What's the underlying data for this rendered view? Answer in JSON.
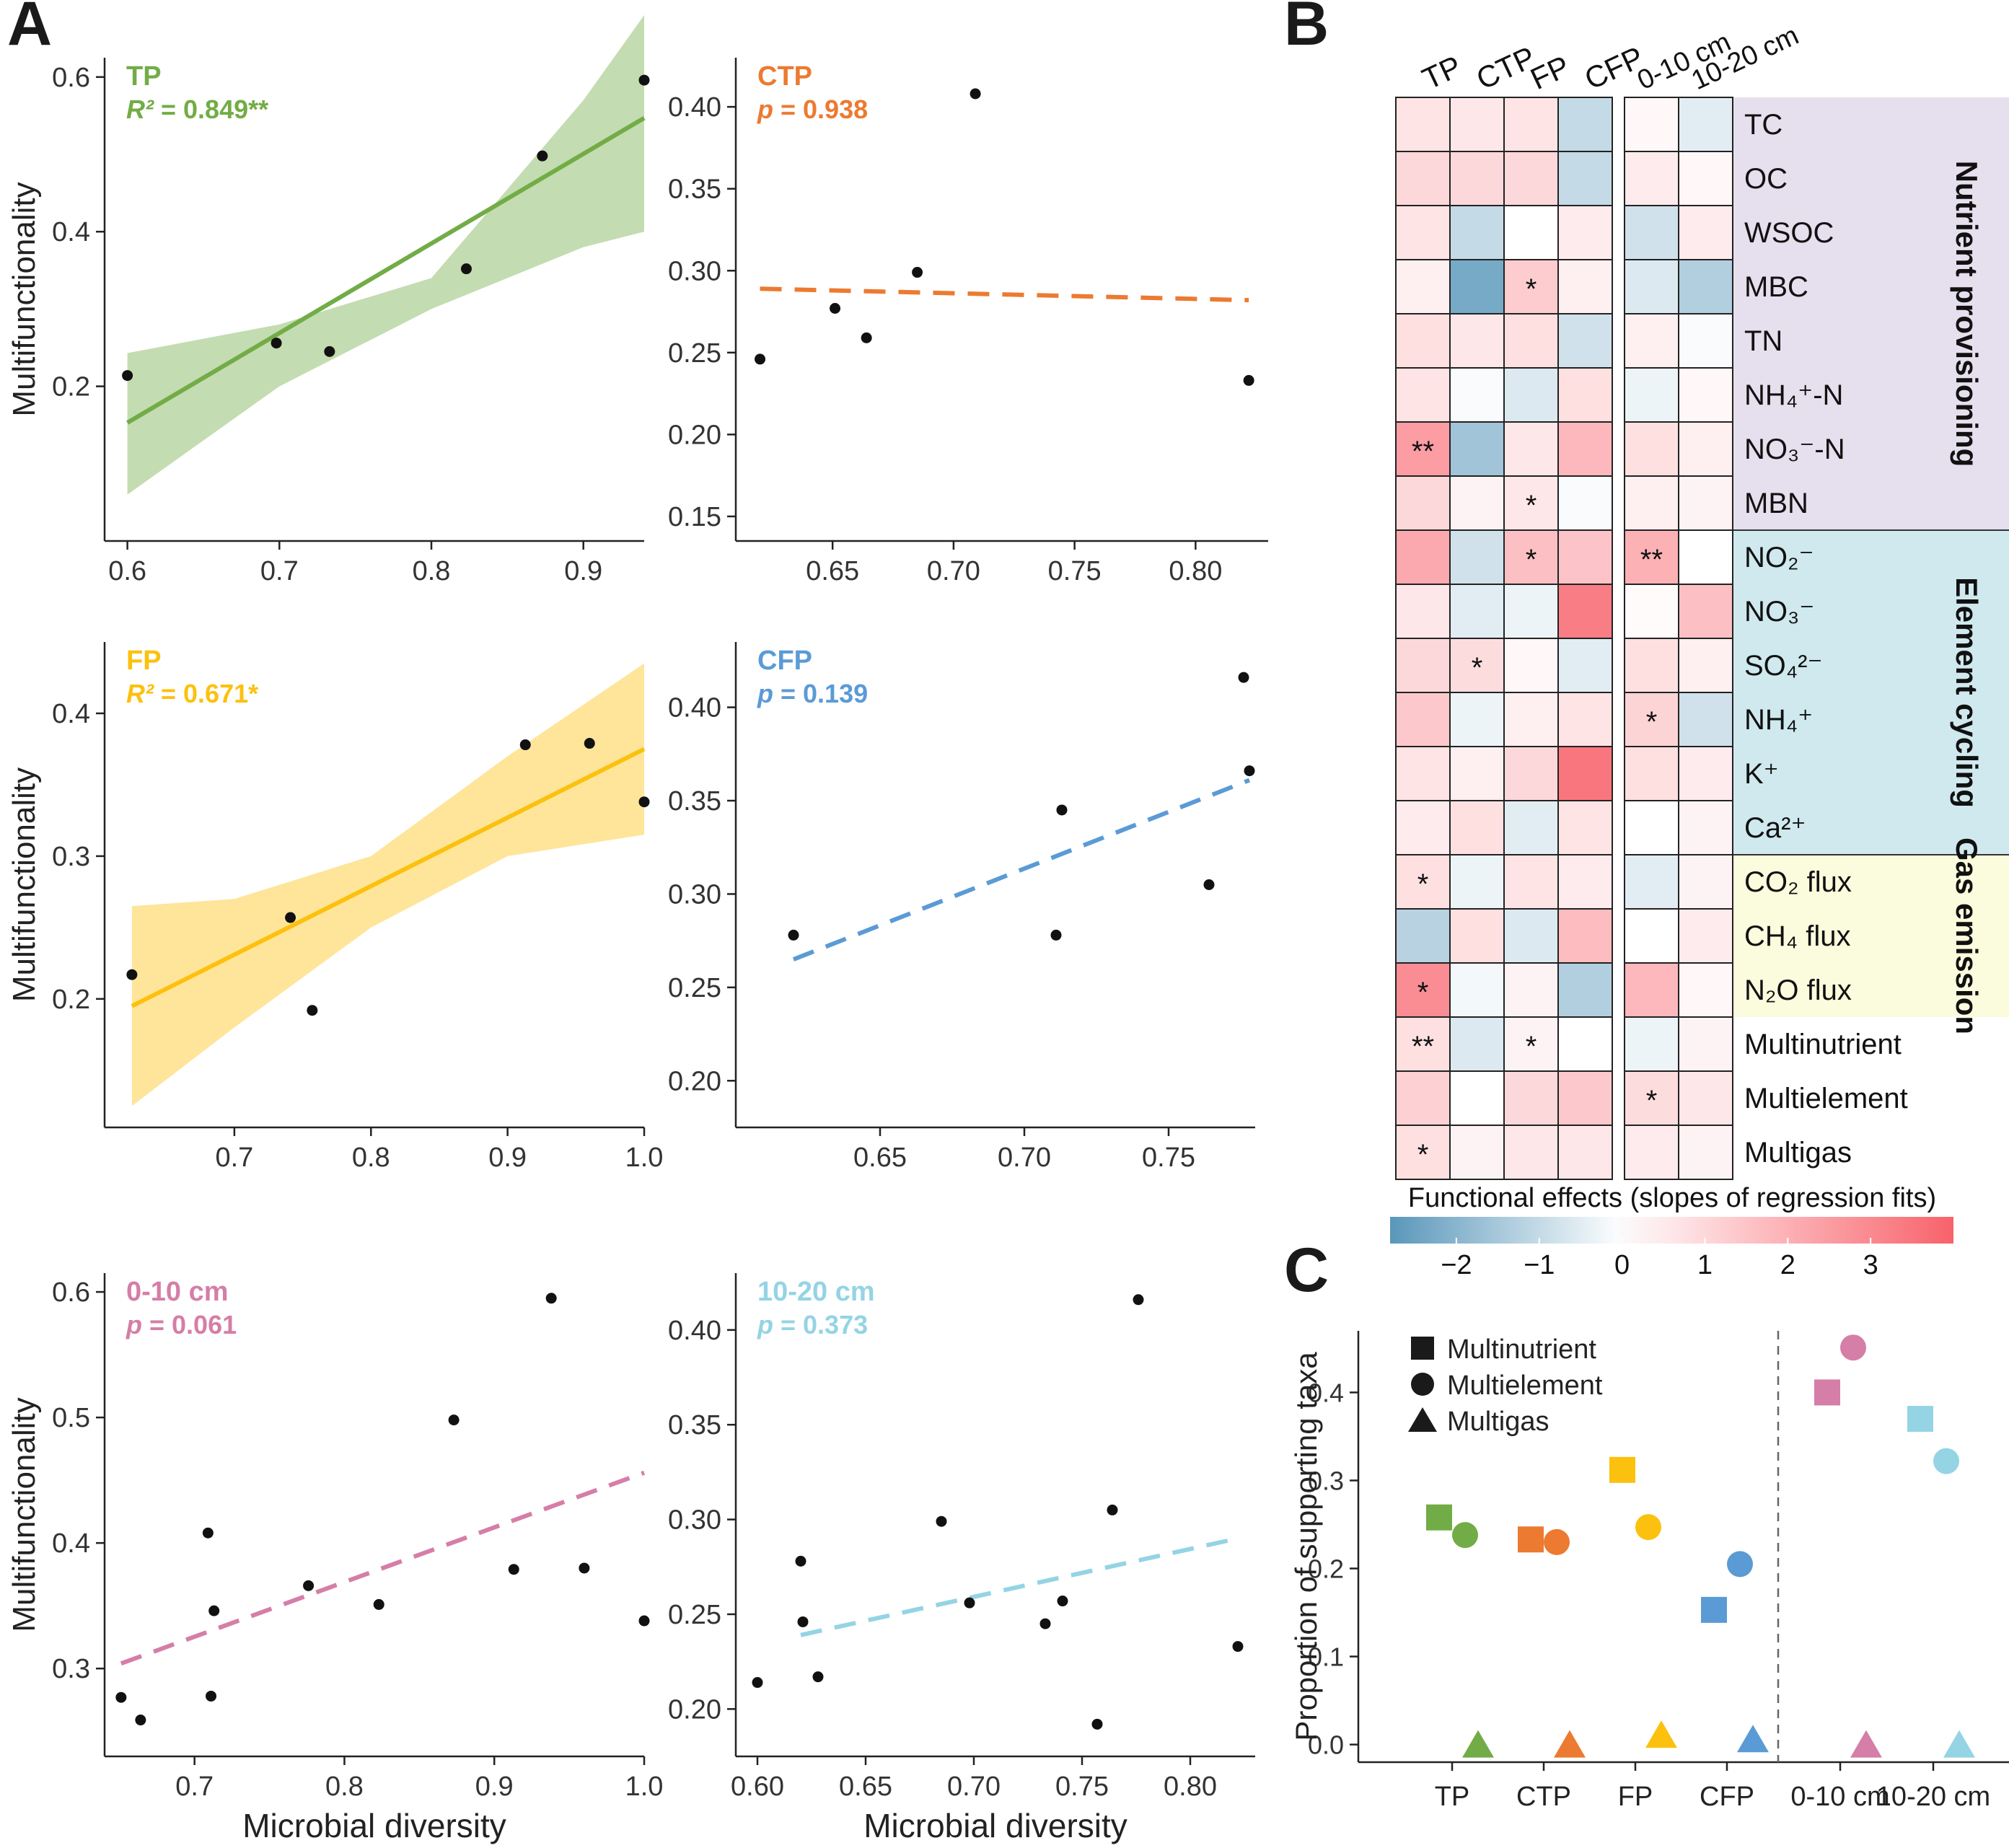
{
  "figure": {
    "panel_labels": {
      "A": "A",
      "B": "B",
      "C": "C"
    },
    "colors": {
      "tp": "#72ac46",
      "ctp": "#ec7a31",
      "fp": "#fcc10e",
      "cfp": "#5b9bd5",
      "d010": "#d57ea7",
      "d1020": "#94d4e4",
      "purple_band": "#e6dfee",
      "blue_band": "#cfe9ee",
      "yellow_band": "#fbfbdd",
      "neg": "#5a97ba",
      "pos": "#f8626b"
    }
  },
  "chart_data": [
    {
      "type": "scatter",
      "panel": "A1",
      "label": "TP",
      "stat": "R² = 0.849**",
      "ylabel": "Multifunctionality",
      "xlabel": "",
      "xlim": [
        0.585,
        0.94
      ],
      "ylim": [
        0.0,
        0.625
      ],
      "xticks": [
        0.6,
        0.7,
        0.8,
        0.9
      ],
      "xtick_labels": [
        "0.6",
        "0.7",
        "0.8",
        "0.9"
      ],
      "yticks": [
        0.2,
        0.4,
        0.6
      ],
      "ytick_labels": [
        "0.2",
        "0.4",
        "0.6"
      ],
      "points": [
        [
          0.6,
          0.214
        ],
        [
          0.698,
          0.256
        ],
        [
          0.733,
          0.245
        ],
        [
          0.823,
          0.352
        ],
        [
          0.873,
          0.498
        ],
        [
          0.94,
          0.596
        ]
      ],
      "fit": {
        "style": "solid",
        "x": [
          0.6,
          0.94
        ],
        "y": [
          0.153,
          0.547
        ]
      },
      "band": {
        "x": [
          0.6,
          0.7,
          0.8,
          0.9,
          0.94
        ],
        "lo": [
          0.06,
          0.2,
          0.3,
          0.38,
          0.4
        ],
        "hi": [
          0.243,
          0.28,
          0.34,
          0.57,
          0.68
        ]
      }
    },
    {
      "type": "scatter",
      "panel": "A2",
      "label": "CTP",
      "stat": "p = 0.938",
      "ylabel": "",
      "xlabel": "",
      "xlim": [
        0.61,
        0.83
      ],
      "ylim": [
        0.135,
        0.43
      ],
      "xticks": [
        0.65,
        0.7,
        0.75,
        0.8
      ],
      "xtick_labels": [
        "0.65",
        "0.70",
        "0.75",
        "0.80"
      ],
      "yticks": [
        0.15,
        0.2,
        0.25,
        0.3,
        0.35,
        0.4
      ],
      "ytick_labels": [
        "0.15",
        "0.20",
        "0.25",
        "0.30",
        "0.35",
        "0.40"
      ],
      "points": [
        [
          0.62,
          0.246
        ],
        [
          0.651,
          0.277
        ],
        [
          0.664,
          0.259
        ],
        [
          0.685,
          0.299
        ],
        [
          0.709,
          0.408
        ],
        [
          0.822,
          0.233
        ]
      ],
      "fit": {
        "style": "dashed",
        "x": [
          0.62,
          0.822
        ],
        "y": [
          0.289,
          0.282
        ]
      }
    },
    {
      "type": "scatter",
      "panel": "A3",
      "label": "FP",
      "stat": "R² = 0.671*",
      "ylabel": "Multifunctionality",
      "xlabel": "",
      "xlim": [
        0.605,
        1.0
      ],
      "ylim": [
        0.11,
        0.45
      ],
      "xticks": [
        0.7,
        0.8,
        0.9,
        1.0
      ],
      "xtick_labels": [
        "0.7",
        "0.8",
        "0.9",
        "1.0"
      ],
      "yticks": [
        0.2,
        0.3,
        0.4
      ],
      "ytick_labels": [
        "0.2",
        "0.3",
        "0.4"
      ],
      "points": [
        [
          0.625,
          0.217
        ],
        [
          0.741,
          0.257
        ],
        [
          0.757,
          0.192
        ],
        [
          0.913,
          0.378
        ],
        [
          0.96,
          0.379
        ],
        [
          1.0,
          0.338
        ]
      ],
      "fit": {
        "style": "solid",
        "x": [
          0.625,
          1.0
        ],
        "y": [
          0.195,
          0.375
        ]
      },
      "band": {
        "x": [
          0.625,
          0.7,
          0.8,
          0.9,
          1.0
        ],
        "lo": [
          0.125,
          0.18,
          0.25,
          0.3,
          0.315
        ],
        "hi": [
          0.265,
          0.27,
          0.3,
          0.37,
          0.435
        ]
      }
    },
    {
      "type": "scatter",
      "panel": "A4",
      "label": "CFP",
      "stat": "p = 0.139",
      "ylabel": "",
      "xlabel": "",
      "xlim": [
        0.6,
        0.78
      ],
      "ylim": [
        0.175,
        0.435
      ],
      "xticks": [
        0.65,
        0.7,
        0.75
      ],
      "xtick_labels": [
        "0.65",
        "0.70",
        "0.75"
      ],
      "yticks": [
        0.2,
        0.25,
        0.3,
        0.35,
        0.4
      ],
      "ytick_labels": [
        "0.20",
        "0.25",
        "0.30",
        "0.35",
        "0.40"
      ],
      "points": [
        [
          0.62,
          0.278
        ],
        [
          0.711,
          0.278
        ],
        [
          0.713,
          0.345
        ],
        [
          0.764,
          0.305
        ],
        [
          0.776,
          0.416
        ],
        [
          0.778,
          0.366
        ]
      ],
      "fit": {
        "style": "dashed",
        "x": [
          0.62,
          0.778
        ],
        "y": [
          0.265,
          0.361
        ]
      }
    },
    {
      "type": "scatter",
      "panel": "A5",
      "label": "0-10 cm",
      "stat": "p = 0.061",
      "ylabel": "Multifunctionality",
      "xlabel": "Microbial diversity",
      "xlim": [
        0.64,
        1.0
      ],
      "ylim": [
        0.23,
        0.615
      ],
      "xticks": [
        0.7,
        0.8,
        0.9,
        1.0
      ],
      "xtick_labels": [
        "0.7",
        "0.8",
        "0.9",
        "1.0"
      ],
      "yticks": [
        0.3,
        0.4,
        0.5,
        0.6
      ],
      "ytick_labels": [
        "0.3",
        "0.4",
        "0.5",
        "0.6"
      ],
      "points": [
        [
          0.651,
          0.277
        ],
        [
          0.664,
          0.259
        ],
        [
          0.709,
          0.408
        ],
        [
          0.711,
          0.278
        ],
        [
          0.713,
          0.346
        ],
        [
          0.776,
          0.366
        ],
        [
          0.823,
          0.351
        ],
        [
          0.873,
          0.498
        ],
        [
          0.913,
          0.379
        ],
        [
          0.938,
          0.595
        ],
        [
          0.96,
          0.38
        ],
        [
          1.0,
          0.338
        ]
      ],
      "fit": {
        "style": "dashed",
        "x": [
          0.651,
          1.0
        ],
        "y": [
          0.304,
          0.456
        ]
      }
    },
    {
      "type": "scatter",
      "panel": "A6",
      "label": "10-20 cm",
      "stat": "p = 0.373",
      "ylabel": "",
      "xlabel": "Microbial diversity",
      "xlim": [
        0.59,
        0.83
      ],
      "ylim": [
        0.175,
        0.43
      ],
      "xticks": [
        0.6,
        0.65,
        0.7,
        0.75,
        0.8
      ],
      "xtick_labels": [
        "0.60",
        "0.65",
        "0.70",
        "0.75",
        "0.80"
      ],
      "yticks": [
        0.2,
        0.25,
        0.3,
        0.35,
        0.4
      ],
      "ytick_labels": [
        "0.20",
        "0.25",
        "0.30",
        "0.35",
        "0.40"
      ],
      "points": [
        [
          0.6,
          0.214
        ],
        [
          0.62,
          0.278
        ],
        [
          0.621,
          0.246
        ],
        [
          0.628,
          0.217
        ],
        [
          0.685,
          0.299
        ],
        [
          0.698,
          0.256
        ],
        [
          0.733,
          0.245
        ],
        [
          0.741,
          0.257
        ],
        [
          0.757,
          0.192
        ],
        [
          0.764,
          0.305
        ],
        [
          0.776,
          0.416
        ],
        [
          0.822,
          0.233
        ]
      ],
      "fit": {
        "style": "dashed",
        "x": [
          0.62,
          0.822
        ],
        "y": [
          0.239,
          0.29
        ]
      }
    },
    {
      "type": "heatmap",
      "panel": "B",
      "columns_left": [
        "TP",
        "CTP",
        "FP",
        "CFP"
      ],
      "columns_right": [
        "0-10 cm",
        "10-20 cm"
      ],
      "rows": [
        "TC",
        "OC",
        "WSOC",
        "MBC",
        "TN",
        "NH₄⁺-N",
        "NO₃⁻-N",
        "MBN",
        "NO₂⁻",
        "NO₃⁻",
        "SO₄²⁻",
        "NH₄⁺",
        "K⁺",
        "Ca²⁺",
        "CO₂ flux",
        "CH₄ flux",
        "N₂O flux",
        "Multinutrient",
        "Multielement",
        "Multigas"
      ],
      "values_left": [
        [
          0.7,
          0.6,
          0.7,
          -1.0
        ],
        [
          1.0,
          1.0,
          1.0,
          -1.0
        ],
        [
          0.7,
          -1.0,
          0.0,
          0.5
        ],
        [
          0.4,
          -2.3,
          1.3,
          0.4
        ],
        [
          0.8,
          0.6,
          0.8,
          -0.8
        ],
        [
          0.7,
          -0.1,
          -0.6,
          0.8
        ],
        [
          2.5,
          -1.6,
          0.6,
          1.8
        ],
        [
          1.0,
          0.3,
          0.6,
          -0.1
        ],
        [
          2.2,
          -0.8,
          1.6,
          1.5
        ],
        [
          0.6,
          -0.5,
          -0.3,
          3.3
        ],
        [
          1.0,
          0.9,
          0.2,
          -0.5
        ],
        [
          1.4,
          -0.3,
          0.4,
          0.7
        ],
        [
          0.7,
          0.4,
          1.0,
          3.5
        ],
        [
          0.5,
          0.8,
          -0.5,
          0.7
        ],
        [
          0.8,
          -0.3,
          0.7,
          0.5
        ],
        [
          -1.2,
          0.8,
          -0.6,
          1.7
        ],
        [
          2.9,
          -0.2,
          0.3,
          -1.3
        ],
        [
          0.8,
          -0.6,
          0.3,
          0.0
        ],
        [
          1.2,
          0.0,
          1.0,
          1.4
        ],
        [
          0.8,
          0.3,
          0.6,
          0.6
        ]
      ],
      "values_right": [
        [
          0.2,
          -0.5
        ],
        [
          0.5,
          0.2
        ],
        [
          -0.8,
          0.5
        ],
        [
          -0.6,
          -1.3
        ],
        [
          0.4,
          -0.1
        ],
        [
          -0.3,
          0.2
        ],
        [
          0.8,
          0.4
        ],
        [
          0.4,
          0.3
        ],
        [
          2.0,
          0.0
        ],
        [
          0.1,
          1.6
        ],
        [
          0.8,
          0.4
        ],
        [
          1.1,
          -0.8
        ],
        [
          0.8,
          0.5
        ],
        [
          0.0,
          0.3
        ],
        [
          -0.5,
          0.3
        ],
        [
          0.0,
          0.5
        ],
        [
          1.8,
          0.2
        ],
        [
          -0.3,
          0.3
        ],
        [
          0.9,
          0.6
        ],
        [
          0.5,
          0.3
        ]
      ],
      "stars_left": [
        [
          "",
          "",
          "",
          ""
        ],
        [
          "",
          "",
          "",
          ""
        ],
        [
          "",
          "",
          "",
          ""
        ],
        [
          "",
          "",
          "*",
          ""
        ],
        [
          "",
          "",
          "",
          ""
        ],
        [
          "",
          "",
          "",
          ""
        ],
        [
          "**",
          "",
          "",
          ""
        ],
        [
          "",
          "",
          "*",
          ""
        ],
        [
          "",
          "",
          "*",
          ""
        ],
        [
          "",
          "",
          "",
          ""
        ],
        [
          "",
          "*",
          "",
          ""
        ],
        [
          "",
          "",
          "",
          ""
        ],
        [
          "",
          "",
          "",
          ""
        ],
        [
          "",
          "",
          "",
          ""
        ],
        [
          "*",
          "",
          "",
          ""
        ],
        [
          "",
          "",
          "",
          ""
        ],
        [
          "*",
          "",
          "",
          ""
        ],
        [
          "**",
          "",
          "*",
          ""
        ],
        [
          "",
          "",
          "",
          ""
        ],
        [
          "*",
          "",
          "",
          ""
        ]
      ],
      "stars_right": [
        [
          "",
          ""
        ],
        [
          "",
          ""
        ],
        [
          "",
          ""
        ],
        [
          "",
          ""
        ],
        [
          "",
          ""
        ],
        [
          "",
          ""
        ],
        [
          "",
          ""
        ],
        [
          "",
          ""
        ],
        [
          "**",
          ""
        ],
        [
          "",
          ""
        ],
        [
          "",
          ""
        ],
        [
          "*",
          ""
        ],
        [
          "",
          ""
        ],
        [
          "",
          ""
        ],
        [
          "",
          ""
        ],
        [
          "",
          ""
        ],
        [
          "",
          ""
        ],
        [
          "",
          ""
        ],
        [
          "*",
          ""
        ],
        [
          "",
          ""
        ]
      ],
      "groups": [
        "Nutrient provisioning",
        "Element cycling",
        "Gas emission"
      ],
      "colorbar_title": "Functional effects (slopes of regression fits)",
      "colorbar_range": [
        -2.8,
        4.0
      ],
      "colorbar_ticks": [
        -2,
        -1,
        0,
        1,
        2,
        3
      ],
      "colorbar_tick_labels": [
        "−2",
        "−1",
        "0",
        "1",
        "2",
        "3"
      ]
    },
    {
      "type": "scatter",
      "panel": "C",
      "ylabel": "Proportion of supporting taxa",
      "categories": [
        "TP",
        "CTP",
        "FP",
        "CFP",
        "0-10 cm",
        "10-20 cm"
      ],
      "ylim": [
        -0.02,
        0.47
      ],
      "yticks": [
        0.0,
        0.1,
        0.2,
        0.3,
        0.4
      ],
      "ytick_labels": [
        "0.0",
        "0.1",
        "0.2",
        "0.3",
        "0.4"
      ],
      "legend": [
        "Multinutrient",
        "Multielement",
        "Multigas"
      ],
      "series": [
        {
          "name": "Multinutrient",
          "shape": "square",
          "values": [
            0.258,
            0.233,
            0.312,
            0.153,
            0.4,
            0.37
          ]
        },
        {
          "name": "Multielement",
          "shape": "circle",
          "values": [
            0.238,
            0.23,
            0.247,
            0.205,
            0.451,
            0.322
          ]
        },
        {
          "name": "Multigas",
          "shape": "triangle",
          "values": [
            0.0,
            0.0,
            0.011,
            0.006,
            0.0,
            0.0
          ]
        }
      ]
    }
  ]
}
